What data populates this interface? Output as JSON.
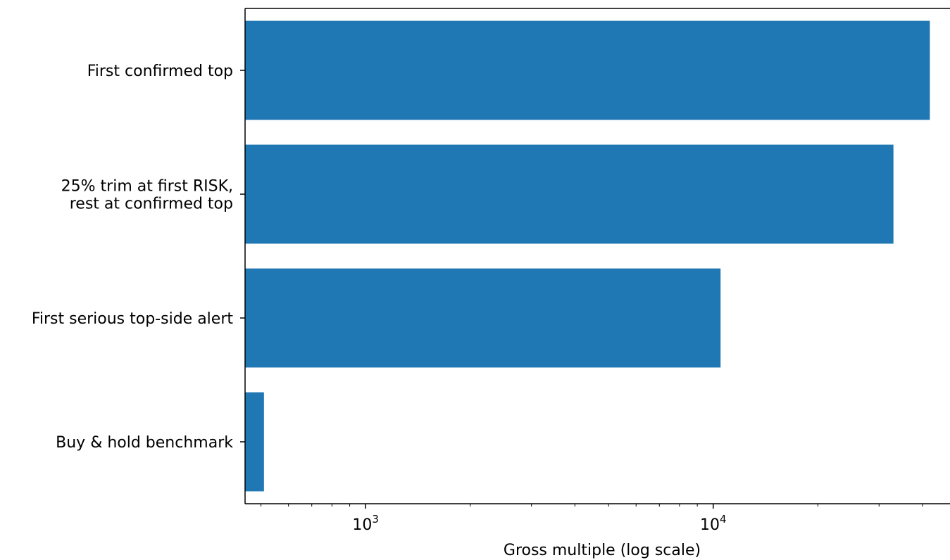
{
  "chart_data": {
    "type": "bar",
    "orientation": "horizontal",
    "categories": [
      [
        "First confirmed top"
      ],
      [
        "25% trim at first RISK,",
        "rest at confirmed top"
      ],
      [
        "First serious top-side alert"
      ],
      [
        "Buy & hold benchmark"
      ]
    ],
    "values": [
      42000,
      33000,
      10500,
      510
    ],
    "xscale": "log",
    "xlim": [
      450,
      48000
    ],
    "xticks": [
      {
        "value": 1000,
        "base": "10",
        "exp": "3"
      },
      {
        "value": 10000,
        "base": "10",
        "exp": "4"
      }
    ],
    "xlabel": "Gross multiple (log scale)",
    "ylabel": "",
    "title": "",
    "grid": false,
    "legend": "none",
    "colors": {
      "bar": "#1f77b4",
      "axis": "#000000",
      "background": "#ffffff"
    }
  }
}
